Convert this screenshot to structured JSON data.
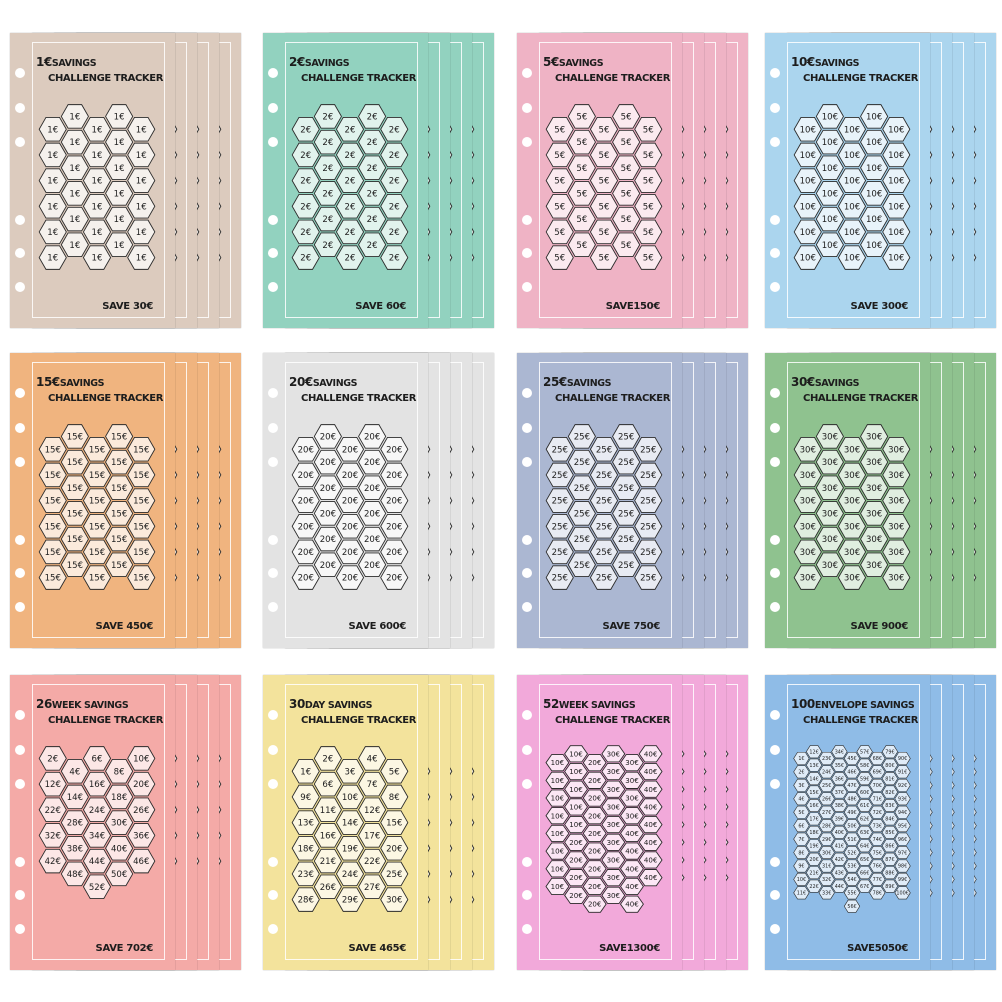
{
  "cards": [
    {
      "title_num": "1€",
      "title1": "SAVINGS",
      "title2": "CHALLENGE TRACKER",
      "save": "SAVE 30€",
      "color": "#dccbbe",
      "columns": [
        [
          "1€",
          "1€",
          "1€",
          "1€",
          "1€",
          "1€"
        ],
        [
          "1€",
          "1€",
          "1€",
          "1€",
          "1€",
          "1€"
        ],
        [
          "1€",
          "1€",
          "1€",
          "1€",
          "1€",
          "1€"
        ],
        [
          "1€",
          "1€",
          "1€",
          "1€",
          "1€",
          "1€"
        ],
        [
          "1€",
          "1€",
          "1€",
          "1€",
          "1€",
          "1€"
        ]
      ]
    },
    {
      "title_num": "2€",
      "title1": "SAVINGS",
      "title2": "CHALLENGE TRACKER",
      "save": "SAVE 60€",
      "color": "#92d2bf",
      "columns": [
        [
          "2€",
          "2€",
          "2€",
          "2€",
          "2€",
          "2€"
        ],
        [
          "2€",
          "2€",
          "2€",
          "2€",
          "2€",
          "2€"
        ],
        [
          "2€",
          "2€",
          "2€",
          "2€",
          "2€",
          "2€"
        ],
        [
          "2€",
          "2€",
          "2€",
          "2€",
          "2€",
          "2€"
        ],
        [
          "2€",
          "2€",
          "2€",
          "2€",
          "2€",
          "2€"
        ]
      ]
    },
    {
      "title_num": "5€",
      "title1": "SAVINGS",
      "title2": "CHALLENGE TRACKER",
      "save": "SAVE150€",
      "color": "#efb3c5",
      "columns": [
        [
          "5€",
          "5€",
          "5€",
          "5€",
          "5€",
          "5€"
        ],
        [
          "5€",
          "5€",
          "5€",
          "5€",
          "5€",
          "5€"
        ],
        [
          "5€",
          "5€",
          "5€",
          "5€",
          "5€",
          "5€"
        ],
        [
          "5€",
          "5€",
          "5€",
          "5€",
          "5€",
          "5€"
        ],
        [
          "5€",
          "5€",
          "5€",
          "5€",
          "5€",
          "5€"
        ]
      ]
    },
    {
      "title_num": "10€",
      "title1": "SAVINGS",
      "title2": "CHALLENGE TRACKER",
      "save": "SAVE 300€",
      "color": "#abd5ee",
      "columns": [
        [
          "10€",
          "10€",
          "10€",
          "10€",
          "10€",
          "10€"
        ],
        [
          "10€",
          "10€",
          "10€",
          "10€",
          "10€",
          "10€"
        ],
        [
          "10€",
          "10€",
          "10€",
          "10€",
          "10€",
          "10€"
        ],
        [
          "10€",
          "10€",
          "10€",
          "10€",
          "10€",
          "10€"
        ],
        [
          "10€",
          "10€",
          "10€",
          "10€",
          "10€",
          "10€"
        ]
      ]
    },
    {
      "title_num": "15€",
      "title1": "SAVINGS",
      "title2": "CHALLENGE TRACKER",
      "save": "SAVE 450€",
      "color": "#f0b47f",
      "columns": [
        [
          "15€",
          "15€",
          "15€",
          "15€",
          "15€",
          "15€"
        ],
        [
          "15€",
          "15€",
          "15€",
          "15€",
          "15€",
          "15€"
        ],
        [
          "15€",
          "15€",
          "15€",
          "15€",
          "15€",
          "15€"
        ],
        [
          "15€",
          "15€",
          "15€",
          "15€",
          "15€",
          "15€"
        ],
        [
          "15€",
          "15€",
          "15€",
          "15€",
          "15€",
          "15€"
        ]
      ]
    },
    {
      "title_num": "20€",
      "title1": "SAVINGS",
      "title2": "CHALLENGE TRACKER",
      "save": "SAVE 600€",
      "color": "#e3e3e3",
      "columns": [
        [
          "20€",
          "20€",
          "20€",
          "20€",
          "20€",
          "20€"
        ],
        [
          "20€",
          "20€",
          "20€",
          "20€",
          "20€",
          "20€"
        ],
        [
          "20€",
          "20€",
          "20€",
          "20€",
          "20€",
          "20€"
        ],
        [
          "20€",
          "20€",
          "20€",
          "20€",
          "20€",
          "20€"
        ],
        [
          "20€",
          "20€",
          "20€",
          "20€",
          "20€",
          "20€"
        ]
      ]
    },
    {
      "title_num": "25€",
      "title1": "SAVINGS",
      "title2": "CHALLENGE TRACKER",
      "save": "SAVE 750€",
      "color": "#abb7d2",
      "columns": [
        [
          "25€",
          "25€",
          "25€",
          "25€",
          "25€",
          "25€"
        ],
        [
          "25€",
          "25€",
          "25€",
          "25€",
          "25€",
          "25€"
        ],
        [
          "25€",
          "25€",
          "25€",
          "25€",
          "25€",
          "25€"
        ],
        [
          "25€",
          "25€",
          "25€",
          "25€",
          "25€",
          "25€"
        ],
        [
          "25€",
          "25€",
          "25€",
          "25€",
          "25€",
          "25€"
        ]
      ]
    },
    {
      "title_num": "30€",
      "title1": "SAVINGS",
      "title2": "CHALLENGE TRACKER",
      "save": "SAVE 900€",
      "color": "#8fc28f",
      "columns": [
        [
          "30€",
          "30€",
          "30€",
          "30€",
          "30€",
          "30€"
        ],
        [
          "30€",
          "30€",
          "30€",
          "30€",
          "30€",
          "30€"
        ],
        [
          "30€",
          "30€",
          "30€",
          "30€",
          "30€",
          "30€"
        ],
        [
          "30€",
          "30€",
          "30€",
          "30€",
          "30€",
          "30€"
        ],
        [
          "30€",
          "30€",
          "30€",
          "30€",
          "30€",
          "30€"
        ]
      ]
    },
    {
      "title_num": "26",
      "title1": "WEEK SAVINGS",
      "title2": "CHALLENGE TRACKER",
      "save": "SAVE 702€",
      "color": "#f4aaa7",
      "columns": [
        [
          "2€",
          "12€",
          "22€",
          "32€",
          "42€"
        ],
        [
          "4€",
          "14€",
          "28€",
          "38€",
          "48€"
        ],
        [
          "6€",
          "16€",
          "24€",
          "34€",
          "44€",
          "52€"
        ],
        [
          "8€",
          "18€",
          "30€",
          "40€",
          "50€"
        ],
        [
          "10€",
          "20€",
          "26€",
          "36€",
          "46€"
        ]
      ]
    },
    {
      "title_num": "30",
      "title1": "DAY SAVINGS",
      "title2": "CHALLENGE TRACKER",
      "save": "SAVE 465€",
      "color": "#f3e39c",
      "columns": [
        [
          "1€",
          "9€",
          "13€",
          "18€",
          "23€",
          "28€"
        ],
        [
          "2€",
          "6€",
          "11€",
          "16€",
          "21€",
          "26€"
        ],
        [
          "3€",
          "10€",
          "14€",
          "19€",
          "24€",
          "29€"
        ],
        [
          "4€",
          "7€",
          "12€",
          "17€",
          "22€",
          "27€"
        ],
        [
          "5€",
          "8€",
          "15€",
          "20€",
          "25€",
          "30€"
        ]
      ]
    },
    {
      "title_num": "52",
      "title1": "WEEK SAVINGS",
      "title2": "CHALLENGE TRACKER",
      "save": "SAVE1300€",
      "color": "#f2a9da",
      "columns": [
        [
          "10€",
          "10€",
          "10€",
          "10€",
          "10€",
          "10€",
          "10€",
          "10€"
        ],
        [
          "10€",
          "10€",
          "10€",
          "10€",
          "10€",
          "20€",
          "20€",
          "20€",
          "20€"
        ],
        [
          "20€",
          "20€",
          "20€",
          "20€",
          "20€",
          "20€",
          "20€",
          "20€",
          "20€"
        ],
        [
          "30€",
          "30€",
          "30€",
          "30€",
          "30€",
          "30€",
          "30€",
          "30€",
          "30€"
        ],
        [
          "30€",
          "30€",
          "30€",
          "30€",
          "40€",
          "40€",
          "40€",
          "40€",
          "40€"
        ],
        [
          "40€",
          "40€",
          "40€",
          "40€",
          "40€",
          "40€",
          "40€",
          "40€"
        ]
      ]
    },
    {
      "title_num": "100",
      "title1": "ENVELOPE SAVINGS",
      "title2": "CHALLENGE TRACKER",
      "save": "SAVE5050€",
      "color": "#8fbce7",
      "columns": [
        [
          "1€",
          "2€",
          "3€",
          "4€",
          "5€",
          "6€",
          "7€",
          "8€",
          "9€",
          "10€",
          "11€"
        ],
        [
          "12€",
          "13€",
          "14€",
          "15€",
          "16€",
          "17€",
          "18€",
          "19€",
          "20€",
          "21€",
          "22€"
        ],
        [
          "23€",
          "24€",
          "25€",
          "26€",
          "27€",
          "28€",
          "29€",
          "30€",
          "31€",
          "32€",
          "33€"
        ],
        [
          "34€",
          "35€",
          "36€",
          "37€",
          "38€",
          "39€",
          "40€",
          "41€",
          "42€",
          "43€",
          "44€"
        ],
        [
          "45€",
          "46€",
          "47€",
          "48€",
          "49€",
          "50€",
          "51€",
          "52€",
          "53€",
          "54€",
          "55€",
          "56€"
        ],
        [
          "57€",
          "58€",
          "59€",
          "60€",
          "61€",
          "62€",
          "63€",
          "64€",
          "65€",
          "66€",
          "67€"
        ],
        [
          "68€",
          "69€",
          "70€",
          "71€",
          "72€",
          "73€",
          "74€",
          "75€",
          "76€",
          "77€",
          "78€"
        ],
        [
          "79€",
          "80€",
          "81€",
          "82€",
          "83€",
          "84€",
          "85€",
          "86€",
          "87€",
          "88€",
          "89€"
        ],
        [
          "90€",
          "91€",
          "92€",
          "93€",
          "94€",
          "95€",
          "96€",
          "97€",
          "98€",
          "99€",
          "100€"
        ]
      ]
    }
  ]
}
